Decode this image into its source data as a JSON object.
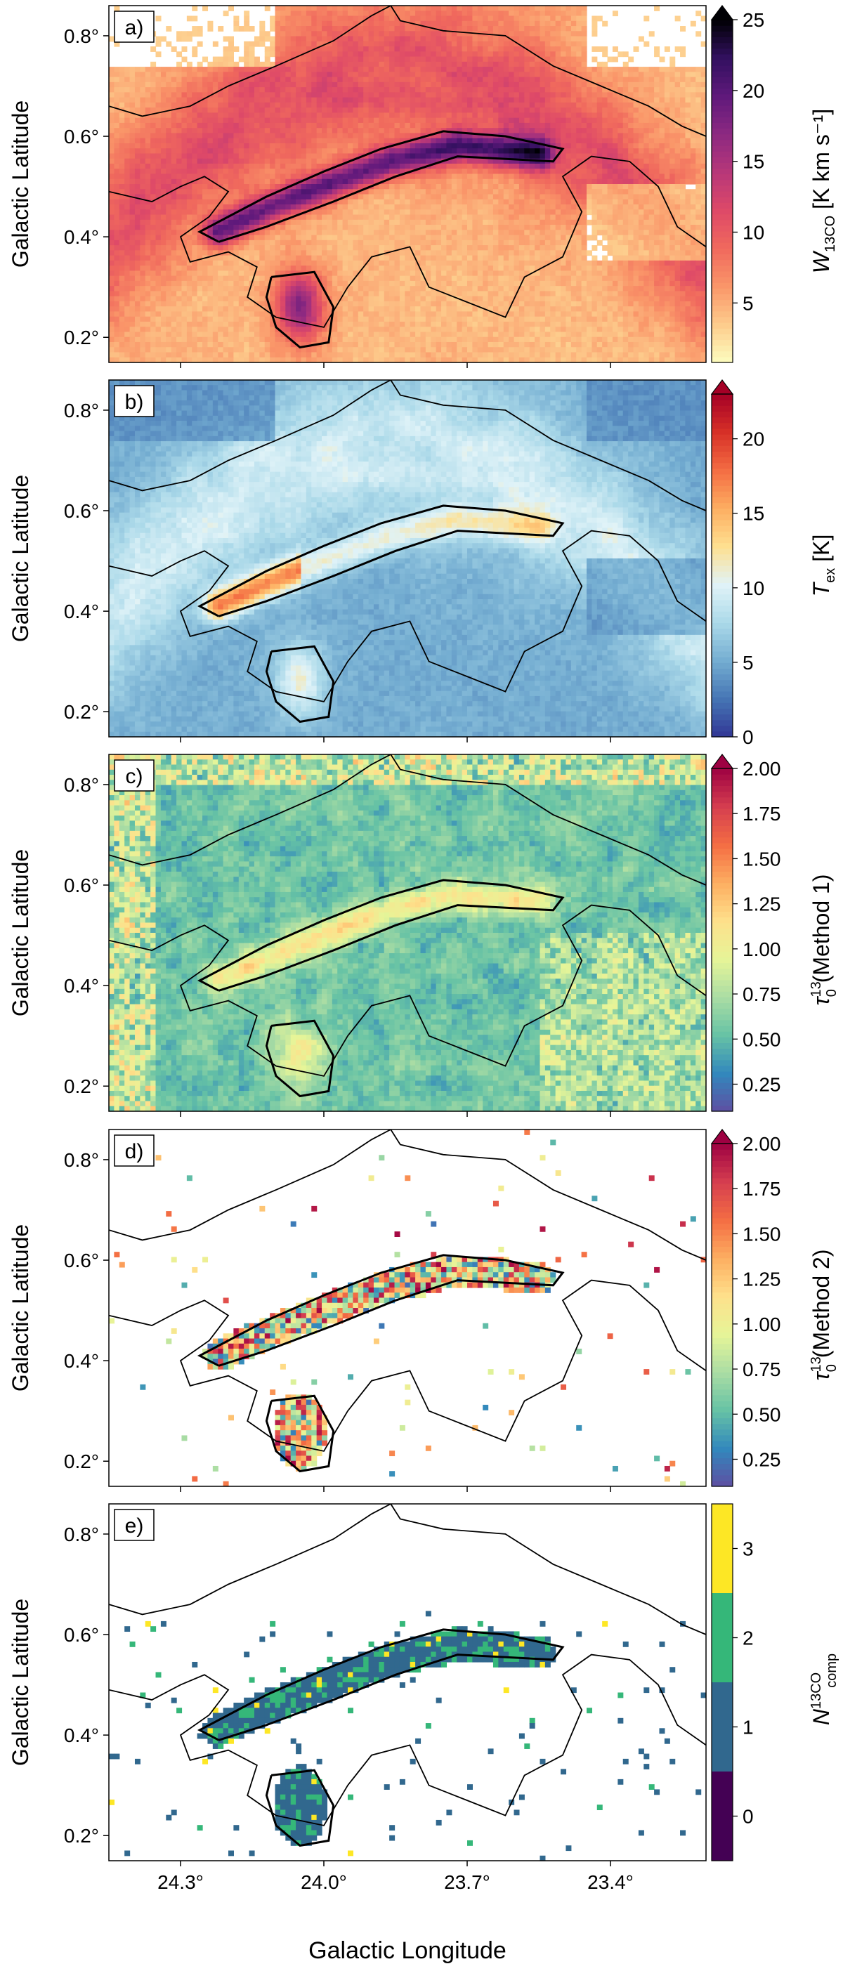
{
  "figure": {
    "xlabel": "Galactic Longitude",
    "xtick_labels": [
      "24.3°",
      "24.0°",
      "23.7°",
      "23.4°"
    ],
    "xticks": [
      24.3,
      24.0,
      23.7,
      23.4
    ],
    "xlim": [
      24.45,
      23.2
    ]
  },
  "chart_data": [
    {
      "type": "heatmap",
      "panel_label": "a)",
      "ylabel": "Galactic Latitude",
      "yticks": [
        0.2,
        0.4,
        0.6,
        0.8
      ],
      "ytick_labels": [
        "0.2°",
        "0.4°",
        "0.6°",
        "0.8°"
      ],
      "ylim": [
        0.15,
        0.86
      ],
      "colorbar": {
        "cmap": "magma_r",
        "label_main": "W",
        "label_sub": "13CO",
        "label_rest": " [K km s⁻¹]",
        "ticks": [
          5,
          10,
          15,
          20,
          25
        ],
        "range": [
          0.8,
          25
        ],
        "extend": "max"
      },
      "field": "W13CO",
      "blank_low": true
    },
    {
      "type": "heatmap",
      "panel_label": "b)",
      "ylabel": "Galactic Latitude",
      "yticks": [
        0.2,
        0.4,
        0.6,
        0.8
      ],
      "ytick_labels": [
        "0.2°",
        "0.4°",
        "0.6°",
        "0.8°"
      ],
      "ylim": [
        0.15,
        0.86
      ],
      "colorbar": {
        "cmap": "RdYlBu_r",
        "label_main": "T",
        "label_sub": "ex",
        "label_rest": " [K]",
        "ticks": [
          0,
          5,
          10,
          15,
          20
        ],
        "range": [
          0,
          23
        ],
        "extend": "max"
      },
      "field": "Tex"
    },
    {
      "type": "heatmap",
      "panel_label": "c)",
      "ylabel": "Galactic Latitude",
      "yticks": [
        0.2,
        0.4,
        0.6,
        0.8
      ],
      "ytick_labels": [
        "0.2°",
        "0.4°",
        "0.6°",
        "0.8°"
      ],
      "ylim": [
        0.15,
        0.86
      ],
      "colorbar": {
        "cmap": "Spectral_r",
        "label_main": "τ",
        "label_sup": "13",
        "label_sub": "0",
        "label_rest": " (Method 1)",
        "ticks": [
          0.25,
          0.5,
          0.75,
          1.0,
          1.25,
          1.5,
          1.75,
          2.0
        ],
        "tick_labels": [
          "0.25",
          "0.50",
          "0.75",
          "1.00",
          "1.25",
          "1.50",
          "1.75",
          "2.00"
        ],
        "range": [
          0.1,
          2.0
        ],
        "extend": "max"
      },
      "field": "tau1"
    },
    {
      "type": "heatmap",
      "panel_label": "d)",
      "ylabel": "Galactic Latitude",
      "yticks": [
        0.2,
        0.4,
        0.6,
        0.8
      ],
      "ytick_labels": [
        "0.2°",
        "0.4°",
        "0.6°",
        "0.8°"
      ],
      "ylim": [
        0.15,
        0.86
      ],
      "colorbar": {
        "cmap": "Spectral_r",
        "label_main": "τ",
        "label_sup": "13",
        "label_sub": "0",
        "label_rest": " (Method 2)",
        "ticks": [
          0.25,
          0.5,
          0.75,
          1.0,
          1.25,
          1.5,
          1.75,
          2.0
        ],
        "tick_labels": [
          "0.25",
          "0.50",
          "0.75",
          "1.00",
          "1.25",
          "1.50",
          "1.75",
          "2.00"
        ],
        "range": [
          0.1,
          2.0
        ],
        "extend": "max"
      },
      "field": "tau2"
    },
    {
      "type": "heatmap",
      "panel_label": "e)",
      "ylabel": "Galactic Latitude",
      "yticks": [
        0.2,
        0.4,
        0.6,
        0.8
      ],
      "ytick_labels": [
        "0.2°",
        "0.4°",
        "0.6°",
        "0.8°"
      ],
      "ylim": [
        0.15,
        0.86
      ],
      "colorbar": {
        "cmap": "viridis_discrete",
        "label_main": "N",
        "label_sup": "13CO",
        "label_sub": "comp",
        "label_rest": "",
        "ticks": [
          0,
          1,
          2,
          3
        ],
        "range": [
          -0.5,
          3.5
        ],
        "extend": "none"
      },
      "field": "ncomp"
    }
  ]
}
